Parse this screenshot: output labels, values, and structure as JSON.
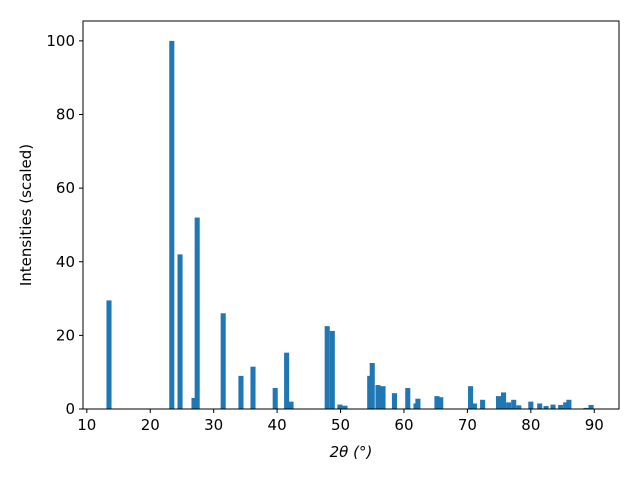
{
  "chart_data": {
    "type": "bar",
    "x": [
      13.5,
      23.4,
      24.7,
      26.9,
      27.4,
      31.5,
      34.3,
      36.2,
      39.7,
      41.5,
      42.2,
      47.9,
      48.7,
      49.9,
      50.7,
      54.6,
      55.0,
      55.9,
      56.7,
      58.5,
      60.6,
      61.9,
      62.2,
      65.2,
      65.8,
      70.5,
      71.1,
      72.4,
      74.9,
      75.7,
      76.5,
      77.3,
      78.1,
      80.0,
      81.4,
      82.4,
      83.5,
      84.7,
      85.5,
      86.0,
      88.7,
      89.5
    ],
    "values": [
      29.5,
      100,
      42,
      3,
      52,
      26,
      9,
      11.5,
      5.7,
      15.3,
      2,
      22.5,
      21.2,
      1.2,
      0.9,
      9,
      12.5,
      6.5,
      6.2,
      4.3,
      5.7,
      1.5,
      2.8,
      3.5,
      3.2,
      6.2,
      1.5,
      2.5,
      3.5,
      4.5,
      1.8,
      2.5,
      1,
      2,
      1.5,
      0.8,
      1.2,
      1.1,
      1.8,
      2.5,
      0.3,
      1.1
    ],
    "color": "#1f77b4",
    "xlabel": "2θ (°)",
    "ylabel": "Intensities (scaled)",
    "xlim": [
      9.4,
      93.9
    ],
    "ylim": [
      0,
      105.4
    ],
    "xticks": [
      10,
      20,
      30,
      40,
      50,
      60,
      70,
      80,
      90
    ],
    "yticks": [
      0,
      20,
      40,
      60,
      80,
      100
    ]
  }
}
